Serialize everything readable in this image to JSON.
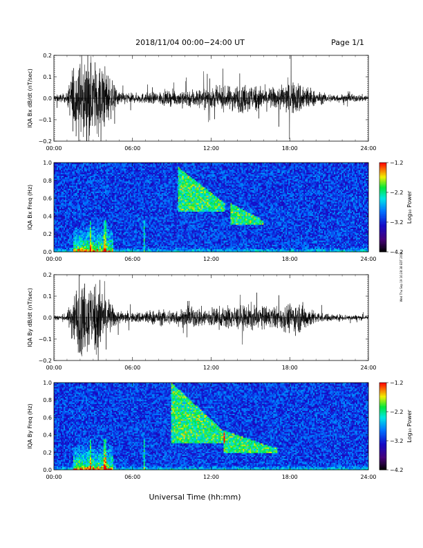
{
  "header": {
    "title": "2018/11/04  00:00−24:00 UT",
    "page_label": "Page 1/1"
  },
  "footer": {
    "xlabel": "Universal Time (hh:mm)",
    "timestamp": "Wed Thu Sep 19 16:28:38 EDT 2019"
  },
  "chart_data": [
    {
      "type": "line",
      "ylabel": "IQA Bx dB/dt (nT/sec)",
      "ylim": [
        -0.2,
        0.2
      ],
      "yticks": [
        "0.2",
        "0.1",
        "0.0",
        "−0.1",
        "−0.2"
      ],
      "xlim": [
        0,
        24
      ],
      "xticks": [
        "00:00",
        "06:00",
        "12:00",
        "18:00",
        "24:00"
      ],
      "envelope_hours": [
        0,
        1,
        1.5,
        2,
        2.5,
        3,
        3.5,
        4,
        4.5,
        5,
        6,
        7,
        8,
        9,
        10,
        11,
        12,
        13,
        14,
        15,
        16,
        17,
        18,
        19,
        20,
        21,
        22,
        23,
        24
      ],
      "envelope_amplitude": [
        0.02,
        0.025,
        0.2,
        0.2,
        0.2,
        0.2,
        0.2,
        0.17,
        0.08,
        0.04,
        0.025,
        0.03,
        0.035,
        0.04,
        0.05,
        0.055,
        0.055,
        0.06,
        0.075,
        0.08,
        0.06,
        0.06,
        0.09,
        0.09,
        0.035,
        0.025,
        0.022,
        0.02,
        0.02
      ]
    },
    {
      "type": "heatmap",
      "ylabel": "IQA Bx Freq (Hz)",
      "ylim": [
        0,
        1.0
      ],
      "yticks": [
        "1.0",
        "0.8",
        "0.6",
        "0.4",
        "0.2",
        "0.0"
      ],
      "xlim": [
        0,
        24
      ],
      "xticks": [
        "00:00",
        "06:00",
        "12:00",
        "18:00",
        "24:00"
      ],
      "colorbar_label": "Log₁₀ Power",
      "colorbar_ticks": [
        "−1.2",
        "−2.2",
        "−3.2",
        "−4.2"
      ],
      "colorbar_range": [
        -4.2,
        -1.2
      ],
      "features": [
        {
          "type": "pc1_band",
          "hours": [
            9.5,
            13.0
          ],
          "freq_hz": [
            0.45,
            0.95
          ]
        },
        {
          "type": "pc1_band",
          "hours": [
            13.5,
            16.0
          ],
          "freq_hz": [
            0.3,
            0.55
          ]
        },
        {
          "type": "low_freq_enhancement",
          "hours": [
            1.5,
            4.5
          ],
          "freq_hz": [
            0,
            0.3
          ]
        }
      ]
    },
    {
      "type": "line",
      "ylabel": "IQA By dB/dt (nT/sec)",
      "ylim": [
        -0.2,
        0.2
      ],
      "yticks": [
        "0.2",
        "0.1",
        "0.0",
        "−0.1",
        "−0.2"
      ],
      "xlim": [
        0,
        24
      ],
      "xticks": [
        "00:00",
        "06:00",
        "12:00",
        "18:00",
        "24:00"
      ],
      "envelope_hours": [
        0,
        1,
        1.5,
        2,
        2.5,
        3,
        3.5,
        4,
        4.5,
        5,
        6,
        7,
        8,
        9,
        10,
        11,
        12,
        13,
        14,
        15,
        16,
        17,
        18,
        19,
        20,
        21,
        22,
        23,
        24
      ],
      "envelope_amplitude": [
        0.015,
        0.02,
        0.15,
        0.2,
        0.2,
        0.2,
        0.2,
        0.14,
        0.06,
        0.035,
        0.025,
        0.04,
        0.04,
        0.045,
        0.05,
        0.055,
        0.055,
        0.06,
        0.065,
        0.07,
        0.06,
        0.06,
        0.08,
        0.08,
        0.03,
        0.02,
        0.018,
        0.015,
        0.015
      ]
    },
    {
      "type": "heatmap",
      "ylabel": "IQA By Freq (Hz)",
      "ylim": [
        0,
        1.0
      ],
      "yticks": [
        "1.0",
        "0.8",
        "0.6",
        "0.4",
        "0.2",
        "0.0"
      ],
      "xlim": [
        0,
        24
      ],
      "xticks": [
        "00:00",
        "06:00",
        "12:00",
        "18:00",
        "24:00"
      ],
      "colorbar_label": "Log₁₀ Power",
      "colorbar_ticks": [
        "−1.2",
        "−2.2",
        "−3.2",
        "−4.2"
      ],
      "colorbar_range": [
        -4.2,
        -1.2
      ],
      "features": [
        {
          "type": "pc1_band",
          "hours": [
            9.0,
            13.0
          ],
          "freq_hz": [
            0.3,
            1.0
          ]
        },
        {
          "type": "pc1_band",
          "hours": [
            13.0,
            17.0
          ],
          "freq_hz": [
            0.2,
            0.45
          ]
        },
        {
          "type": "low_freq_enhancement",
          "hours": [
            1.5,
            4.5
          ],
          "freq_hz": [
            0,
            0.3
          ]
        }
      ]
    }
  ]
}
